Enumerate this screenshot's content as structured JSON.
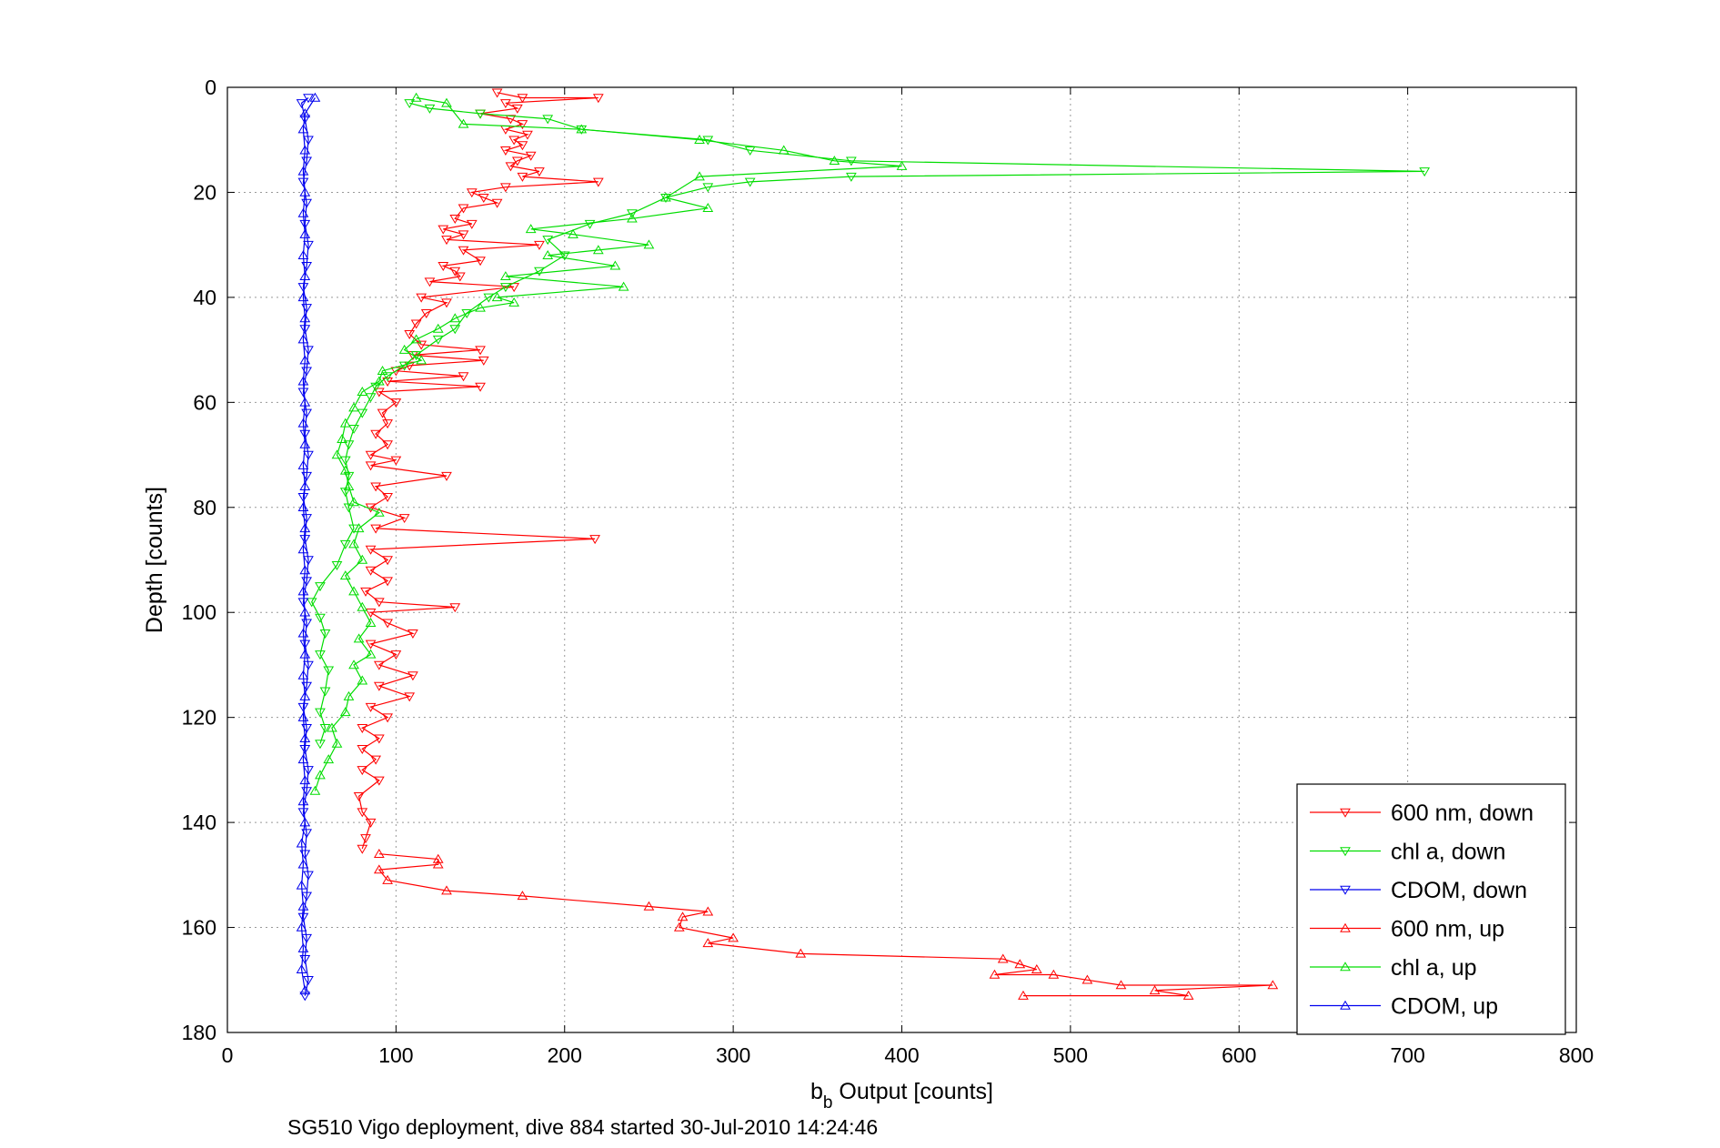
{
  "chart_data": {
    "type": "line",
    "xlabel_main": "b",
    "xlabel_sub": "b",
    "xlabel_rest": " Output [counts]",
    "ylabel": "Depth [counts]",
    "caption": "SG510 Vigo deployment, dive 884 started 30-Jul-2010 14:24:46",
    "xlim": [
      0,
      800
    ],
    "ylim": [
      0,
      180
    ],
    "y_reversed": true,
    "grid": true,
    "legend_position": "bottom-right",
    "x_ticks": [
      "0",
      "100",
      "200",
      "300",
      "400",
      "500",
      "600",
      "700",
      "800"
    ],
    "y_ticks": [
      "0",
      "20",
      "40",
      "60",
      "80",
      "100",
      "120",
      "140",
      "160",
      "180"
    ],
    "series": [
      {
        "name": "600 nm, down",
        "color": "#ff0000",
        "marker": "triangle-down",
        "points": [
          [
            160,
            1
          ],
          [
            175,
            2
          ],
          [
            220,
            2
          ],
          [
            165,
            3
          ],
          [
            172,
            4
          ],
          [
            150,
            5
          ],
          [
            168,
            6
          ],
          [
            175,
            7
          ],
          [
            165,
            8
          ],
          [
            178,
            9
          ],
          [
            170,
            10
          ],
          [
            175,
            11
          ],
          [
            165,
            12
          ],
          [
            180,
            13
          ],
          [
            172,
            14
          ],
          [
            168,
            15
          ],
          [
            185,
            16
          ],
          [
            175,
            17
          ],
          [
            220,
            18
          ],
          [
            165,
            19
          ],
          [
            145,
            20
          ],
          [
            152,
            21
          ],
          [
            160,
            22
          ],
          [
            140,
            23
          ],
          [
            135,
            25
          ],
          [
            145,
            26
          ],
          [
            128,
            27
          ],
          [
            140,
            28
          ],
          [
            130,
            29
          ],
          [
            185,
            30
          ],
          [
            140,
            31
          ],
          [
            150,
            33
          ],
          [
            128,
            34
          ],
          [
            135,
            35
          ],
          [
            138,
            36
          ],
          [
            120,
            37
          ],
          [
            170,
            38
          ],
          [
            115,
            40
          ],
          [
            130,
            41
          ],
          [
            118,
            43
          ],
          [
            112,
            45
          ],
          [
            108,
            47
          ],
          [
            115,
            49
          ],
          [
            150,
            50
          ],
          [
            110,
            51
          ],
          [
            152,
            52
          ],
          [
            108,
            53
          ],
          [
            100,
            54
          ],
          [
            140,
            55
          ],
          [
            95,
            56
          ],
          [
            150,
            57
          ],
          [
            90,
            58
          ],
          [
            100,
            60
          ],
          [
            92,
            62
          ],
          [
            95,
            64
          ],
          [
            88,
            66
          ],
          [
            95,
            68
          ],
          [
            85,
            70
          ],
          [
            100,
            71
          ],
          [
            85,
            72
          ],
          [
            130,
            74
          ],
          [
            88,
            76
          ],
          [
            95,
            78
          ],
          [
            85,
            80
          ],
          [
            105,
            82
          ],
          [
            88,
            84
          ],
          [
            218,
            86
          ],
          [
            85,
            88
          ],
          [
            95,
            90
          ],
          [
            85,
            92
          ],
          [
            95,
            94
          ],
          [
            82,
            96
          ],
          [
            90,
            98
          ],
          [
            135,
            99
          ],
          [
            85,
            100
          ],
          [
            95,
            102
          ],
          [
            110,
            104
          ],
          [
            85,
            106
          ],
          [
            100,
            108
          ],
          [
            90,
            110
          ],
          [
            110,
            112
          ],
          [
            90,
            114
          ],
          [
            108,
            116
          ],
          [
            85,
            118
          ],
          [
            95,
            120
          ],
          [
            80,
            122
          ],
          [
            90,
            124
          ],
          [
            80,
            126
          ],
          [
            88,
            128
          ],
          [
            80,
            130
          ],
          [
            90,
            132
          ],
          [
            78,
            135
          ],
          [
            80,
            138
          ],
          [
            85,
            140
          ],
          [
            82,
            143
          ],
          [
            80,
            145
          ]
        ]
      },
      {
        "name": "chl a, down",
        "color": "#00dd00",
        "marker": "triangle-down",
        "points": [
          [
            108,
            3
          ],
          [
            120,
            4
          ],
          [
            150,
            5
          ],
          [
            190,
            6
          ],
          [
            210,
            8
          ],
          [
            285,
            10
          ],
          [
            310,
            12
          ],
          [
            370,
            14
          ],
          [
            710,
            16
          ],
          [
            370,
            17
          ],
          [
            310,
            18
          ],
          [
            285,
            19
          ],
          [
            260,
            21
          ],
          [
            240,
            24
          ],
          [
            215,
            26
          ],
          [
            190,
            29
          ],
          [
            200,
            32
          ],
          [
            185,
            35
          ],
          [
            165,
            38
          ],
          [
            155,
            40
          ],
          [
            142,
            43
          ],
          [
            135,
            46
          ],
          [
            125,
            48
          ],
          [
            112,
            51
          ],
          [
            105,
            53
          ],
          [
            95,
            55
          ],
          [
            88,
            57
          ],
          [
            85,
            59
          ],
          [
            80,
            62
          ],
          [
            75,
            65
          ],
          [
            72,
            68
          ],
          [
            70,
            71
          ],
          [
            72,
            74
          ],
          [
            70,
            77
          ],
          [
            72,
            80
          ],
          [
            75,
            84
          ],
          [
            70,
            87
          ],
          [
            65,
            91
          ],
          [
            55,
            95
          ],
          [
            50,
            98
          ],
          [
            55,
            101
          ],
          [
            58,
            104
          ],
          [
            55,
            108
          ],
          [
            60,
            111
          ],
          [
            58,
            115
          ],
          [
            55,
            119
          ],
          [
            58,
            122
          ],
          [
            55,
            125
          ]
        ]
      },
      {
        "name": "CDOM, down",
        "color": "#0000ee",
        "marker": "triangle-down",
        "points": [
          [
            48,
            2
          ],
          [
            44,
            3
          ],
          [
            46,
            6
          ],
          [
            48,
            10
          ],
          [
            47,
            14
          ],
          [
            45,
            18
          ],
          [
            47,
            22
          ],
          [
            46,
            26
          ],
          [
            48,
            30
          ],
          [
            47,
            34
          ],
          [
            45,
            38
          ],
          [
            47,
            42
          ],
          [
            46,
            46
          ],
          [
            48,
            50
          ],
          [
            47,
            54
          ],
          [
            45,
            58
          ],
          [
            47,
            62
          ],
          [
            46,
            66
          ],
          [
            48,
            70
          ],
          [
            47,
            74
          ],
          [
            45,
            78
          ],
          [
            47,
            82
          ],
          [
            46,
            86
          ],
          [
            48,
            90
          ],
          [
            47,
            94
          ],
          [
            45,
            98
          ],
          [
            47,
            102
          ],
          [
            46,
            106
          ],
          [
            48,
            110
          ],
          [
            47,
            114
          ],
          [
            45,
            118
          ],
          [
            47,
            122
          ],
          [
            46,
            126
          ],
          [
            48,
            130
          ],
          [
            47,
            134
          ],
          [
            45,
            138
          ],
          [
            47,
            142
          ],
          [
            46,
            146
          ],
          [
            48,
            150
          ],
          [
            47,
            154
          ],
          [
            45,
            158
          ],
          [
            47,
            162
          ],
          [
            46,
            166
          ],
          [
            48,
            170
          ],
          [
            46,
            173
          ]
        ]
      },
      {
        "name": "600 nm, up",
        "color": "#ff0000",
        "marker": "triangle-up",
        "points": [
          [
            472,
            173
          ],
          [
            570,
            173
          ],
          [
            550,
            172
          ],
          [
            620,
            171
          ],
          [
            530,
            171
          ],
          [
            510,
            170
          ],
          [
            490,
            169
          ],
          [
            455,
            169
          ],
          [
            480,
            168
          ],
          [
            470,
            167
          ],
          [
            460,
            166
          ],
          [
            340,
            165
          ],
          [
            285,
            163
          ],
          [
            300,
            162
          ],
          [
            268,
            160
          ],
          [
            270,
            158
          ],
          [
            285,
            157
          ],
          [
            250,
            156
          ],
          [
            175,
            154
          ],
          [
            130,
            153
          ],
          [
            95,
            151
          ],
          [
            90,
            149
          ],
          [
            125,
            148
          ],
          [
            125,
            147
          ],
          [
            90,
            146
          ]
        ]
      },
      {
        "name": "chl a, up",
        "color": "#00dd00",
        "marker": "triangle-up",
        "points": [
          [
            112,
            2
          ],
          [
            130,
            3
          ],
          [
            140,
            7
          ],
          [
            210,
            8
          ],
          [
            280,
            10
          ],
          [
            330,
            12
          ],
          [
            360,
            14
          ],
          [
            400,
            15
          ],
          [
            280,
            17
          ],
          [
            260,
            21
          ],
          [
            285,
            23
          ],
          [
            240,
            25
          ],
          [
            180,
            27
          ],
          [
            205,
            28
          ],
          [
            250,
            30
          ],
          [
            220,
            31
          ],
          [
            190,
            32
          ],
          [
            230,
            34
          ],
          [
            165,
            36
          ],
          [
            235,
            38
          ],
          [
            160,
            40
          ],
          [
            170,
            41
          ],
          [
            150,
            42
          ],
          [
            135,
            44
          ],
          [
            125,
            46
          ],
          [
            112,
            48
          ],
          [
            105,
            50
          ],
          [
            115,
            52
          ],
          [
            92,
            54
          ],
          [
            90,
            56
          ],
          [
            80,
            58
          ],
          [
            75,
            61
          ],
          [
            70,
            64
          ],
          [
            68,
            67
          ],
          [
            65,
            70
          ],
          [
            70,
            73
          ],
          [
            72,
            76
          ],
          [
            75,
            79
          ],
          [
            90,
            81
          ],
          [
            78,
            84
          ],
          [
            75,
            87
          ],
          [
            80,
            90
          ],
          [
            70,
            93
          ],
          [
            75,
            96
          ],
          [
            80,
            99
          ],
          [
            85,
            102
          ],
          [
            78,
            105
          ],
          [
            85,
            108
          ],
          [
            75,
            110
          ],
          [
            80,
            113
          ],
          [
            72,
            116
          ],
          [
            70,
            119
          ],
          [
            62,
            122
          ],
          [
            65,
            125
          ],
          [
            60,
            128
          ],
          [
            55,
            131
          ],
          [
            52,
            134
          ]
        ]
      },
      {
        "name": "CDOM, up",
        "color": "#0000ee",
        "marker": "triangle-up",
        "points": [
          [
            46,
            172
          ],
          [
            44,
            168
          ],
          [
            45,
            164
          ],
          [
            44,
            160
          ],
          [
            45,
            156
          ],
          [
            44,
            152
          ],
          [
            45,
            148
          ],
          [
            44,
            144
          ],
          [
            46,
            140
          ],
          [
            45,
            136
          ],
          [
            46,
            132
          ],
          [
            45,
            128
          ],
          [
            46,
            124
          ],
          [
            45,
            120
          ],
          [
            46,
            116
          ],
          [
            45,
            112
          ],
          [
            46,
            108
          ],
          [
            45,
            104
          ],
          [
            46,
            100
          ],
          [
            45,
            96
          ],
          [
            46,
            92
          ],
          [
            45,
            88
          ],
          [
            46,
            84
          ],
          [
            45,
            80
          ],
          [
            46,
            76
          ],
          [
            45,
            72
          ],
          [
            46,
            68
          ],
          [
            45,
            64
          ],
          [
            46,
            60
          ],
          [
            45,
            56
          ],
          [
            46,
            52
          ],
          [
            45,
            48
          ],
          [
            46,
            44
          ],
          [
            45,
            40
          ],
          [
            46,
            36
          ],
          [
            45,
            32
          ],
          [
            46,
            28
          ],
          [
            45,
            24
          ],
          [
            46,
            20
          ],
          [
            45,
            16
          ],
          [
            46,
            12
          ],
          [
            45,
            8
          ],
          [
            46,
            5
          ],
          [
            52,
            2
          ]
        ]
      }
    ]
  }
}
